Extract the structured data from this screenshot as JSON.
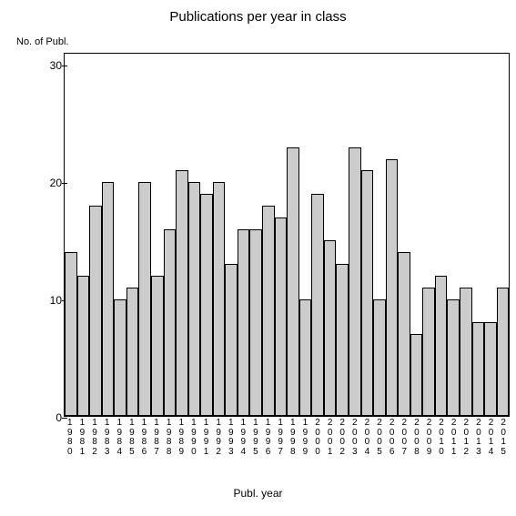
{
  "chart": {
    "type": "bar",
    "title": "Publications per year in class",
    "title_fontsize": 15,
    "y_axis_label": "No. of Publ.",
    "x_axis_label": "Publ. year",
    "label_fontsize": 12,
    "x_tick_fontsize": 10,
    "ylim": [
      0,
      31
    ],
    "yticks": [
      0,
      10,
      20,
      30
    ],
    "bar_color": "#cccccc",
    "bar_border_color": "#000000",
    "background_color": "#ffffff",
    "axis_color": "#000000",
    "years": [
      "1980",
      "1981",
      "1982",
      "1983",
      "1984",
      "1985",
      "1986",
      "1987",
      "1988",
      "1989",
      "1990",
      "1991",
      "1992",
      "1993",
      "1994",
      "1995",
      "1996",
      "1997",
      "1998",
      "1999",
      "2000",
      "2001",
      "2002",
      "2003",
      "2004",
      "2005",
      "2006",
      "2007",
      "2008",
      "2009",
      "2010",
      "2011",
      "2012",
      "2013",
      "2014",
      "2015"
    ],
    "values": [
      14,
      12,
      18,
      20,
      10,
      11,
      20,
      12,
      16,
      21,
      20,
      19,
      20,
      13,
      16,
      16,
      18,
      17,
      23,
      10,
      19,
      15,
      13,
      23,
      21,
      10,
      22,
      14,
      7,
      11,
      12,
      10,
      11,
      8,
      8,
      11
    ]
  }
}
